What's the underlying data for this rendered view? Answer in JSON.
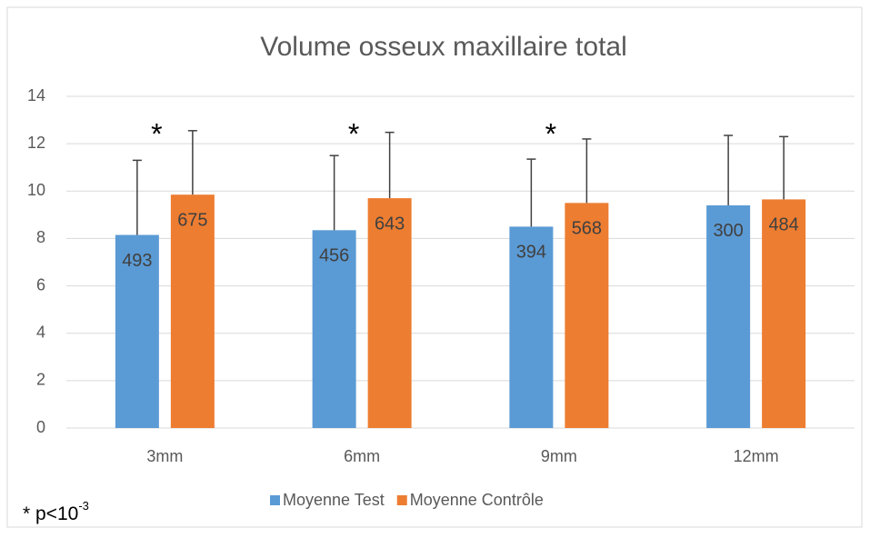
{
  "chart_data": {
    "type": "bar",
    "title": "Volume osseux maxillaire total",
    "categories": [
      "3mm",
      "6mm",
      "9mm",
      "12mm"
    ],
    "series": [
      {
        "name": "Moyenne Test",
        "color": "#5b9bd5",
        "values": [
          8.15,
          8.35,
          8.5,
          9.4
        ],
        "errors": [
          3.15,
          3.15,
          2.85,
          2.95
        ],
        "labels": [
          493,
          456,
          394,
          300
        ]
      },
      {
        "name": "Moyenne Contrôle",
        "color": "#ed7d31",
        "values": [
          9.85,
          9.7,
          9.5,
          9.65
        ],
        "errors": [
          2.7,
          2.78,
          2.7,
          2.65
        ],
        "labels": [
          675,
          643,
          568,
          484
        ]
      }
    ],
    "significance": [
      "*",
      "*",
      "*",
      null
    ],
    "footnote": {
      "text": "* p<10",
      "superscript": "-3"
    },
    "ylim": [
      0,
      14
    ],
    "yticks": [
      0,
      2,
      4,
      6,
      8,
      10,
      12,
      14
    ],
    "grid": true,
    "legend": "bottom"
  }
}
